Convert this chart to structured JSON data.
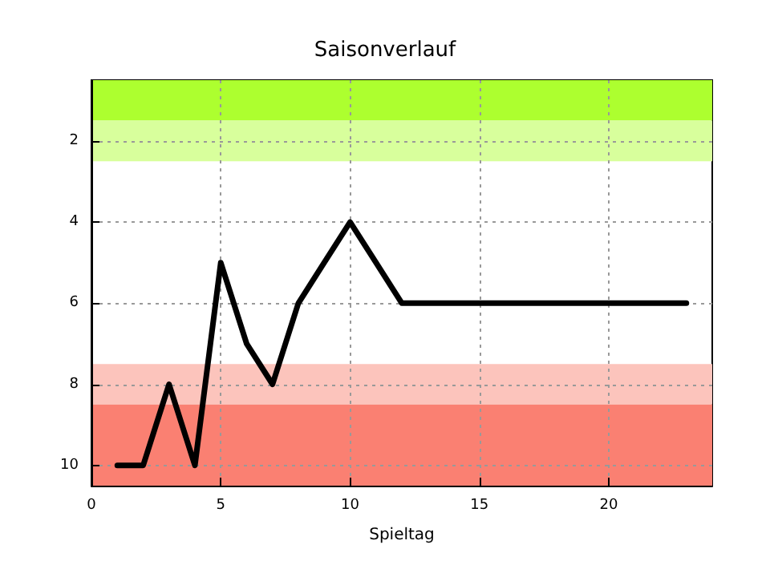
{
  "chart_data": {
    "type": "line",
    "title": "Saisonverlauf",
    "xlabel": "Spieltag",
    "x": [
      1,
      2,
      3,
      4,
      5,
      6,
      7,
      8,
      9,
      10,
      11,
      12,
      13,
      14,
      15,
      16,
      17,
      18,
      19,
      20,
      21,
      22,
      23
    ],
    "series": [
      {
        "color": "#000000",
        "values": [
          10,
          10,
          8,
          10,
          5,
          7,
          8,
          6,
          5,
          4,
          5,
          6,
          6,
          6,
          6,
          6,
          6,
          6,
          6,
          6,
          6,
          6,
          6
        ]
      }
    ],
    "xlim": [
      0,
      24
    ],
    "xticks": [
      0,
      5,
      10,
      15,
      20
    ],
    "ylim": [
      10.5,
      0.5
    ],
    "yticks": [
      2,
      4,
      6,
      8,
      10
    ],
    "bands": [
      {
        "axis": "y",
        "from": 0.5,
        "to": 1.5,
        "color": "#adff2f"
      },
      {
        "axis": "y",
        "from": 1.5,
        "to": 2.5,
        "color": "#d8ff9c"
      },
      {
        "axis": "y",
        "from": 7.5,
        "to": 8.5,
        "color": "#fcc4bc"
      },
      {
        "axis": "y",
        "from": 8.5,
        "to": 10.5,
        "color": "#fa8072"
      }
    ],
    "grid": true,
    "marker": "none",
    "line_style": "solid"
  }
}
